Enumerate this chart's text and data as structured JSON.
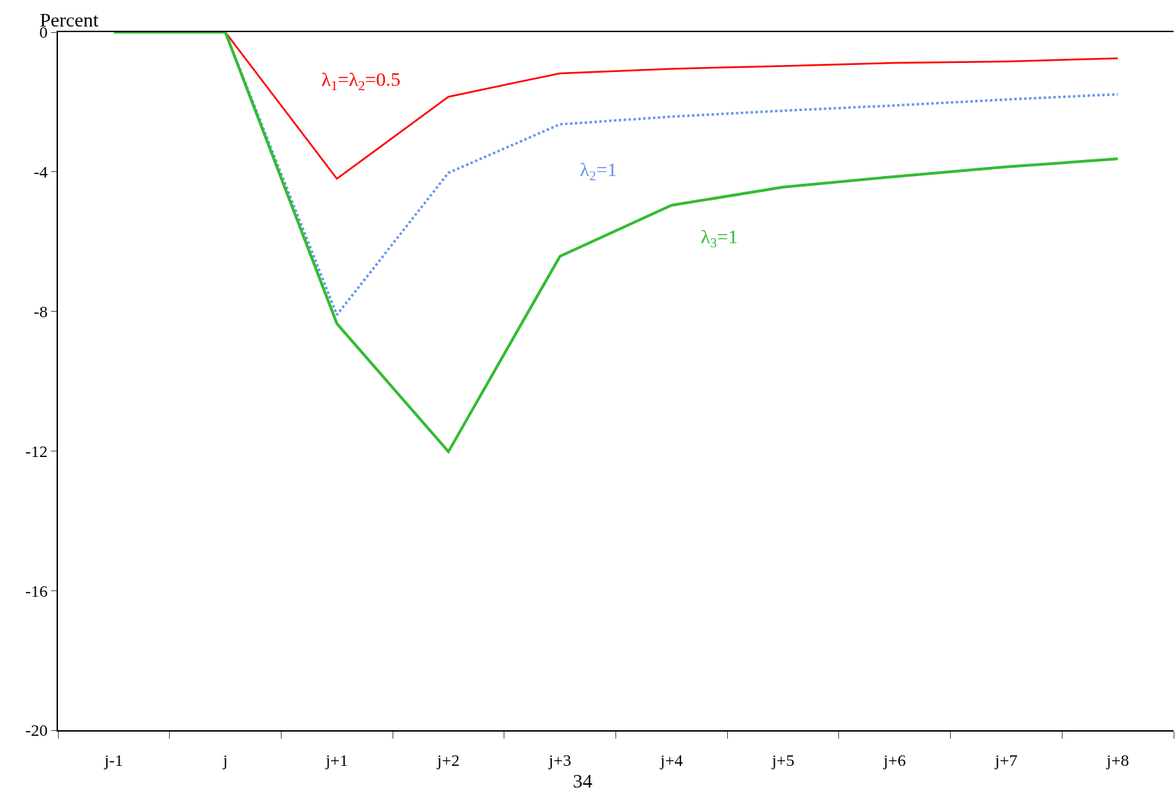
{
  "chart_data": {
    "type": "line",
    "ylabel": "Percent",
    "categories": [
      "j-1",
      "j",
      "j+1",
      "j+2",
      "j+3",
      "j+4",
      "j+5",
      "j+6",
      "j+7",
      "j+8"
    ],
    "ylim": [
      -20,
      0
    ],
    "yticks": [
      -20,
      -16,
      -12,
      -8,
      -4,
      0
    ],
    "legend": false,
    "series": [
      {
        "name": "λ$_{1}$=λ$_{2}$=0.5",
        "color": "#ff0000",
        "line_style": "solid",
        "values": [
          null,
          0,
          -4.2,
          -1.85,
          -1.18,
          -1.05,
          -0.97,
          -0.88,
          -0.84,
          -0.75
        ]
      },
      {
        "name": "λ$_{2}$=1",
        "color": "#6495ed",
        "line_style": "dotted",
        "values": [
          null,
          0,
          -8.1,
          -4.03,
          -2.64,
          -2.42,
          -2.25,
          -2.1,
          -1.93,
          -1.78
        ]
      },
      {
        "name": "λ$_{3}$=1",
        "color": "#33bb33",
        "line_style": "solid",
        "values": [
          0,
          0,
          -8.35,
          -12.02,
          -6.42,
          -4.96,
          -4.44,
          -4.14,
          -3.86,
          -3.63
        ]
      }
    ],
    "annotations": [
      "34"
    ]
  }
}
